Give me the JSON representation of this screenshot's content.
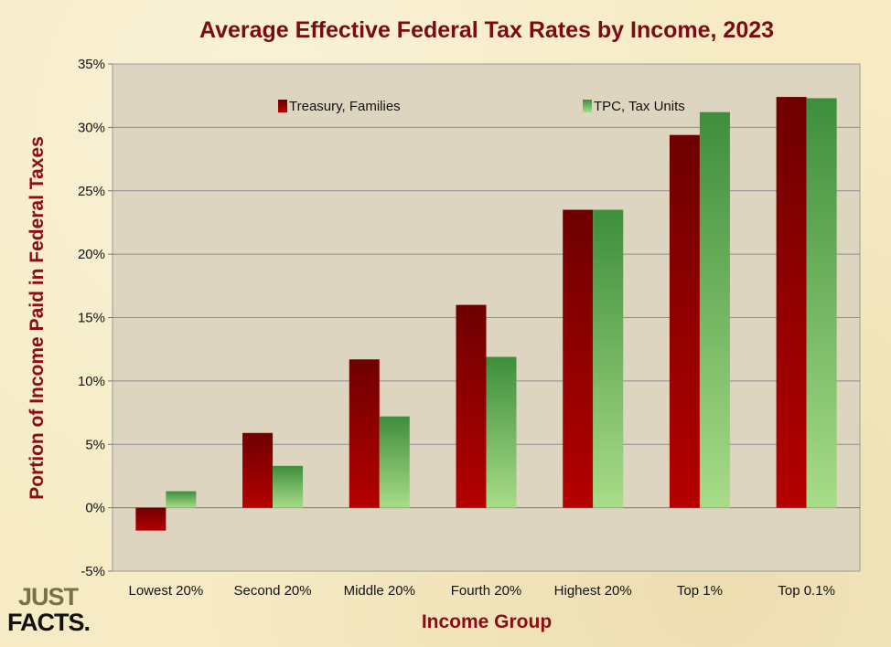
{
  "chart_data": {
    "type": "bar",
    "title": "Average Effective Federal Tax Rates by Income, 2023",
    "xlabel": "Income Group",
    "ylabel": "Portion of Income Paid in Federal Taxes",
    "categories": [
      "Lowest 20%",
      "Second 20%",
      "Middle 20%",
      "Fourth 20%",
      "Highest 20%",
      "Top 1%",
      "Top 0.1%"
    ],
    "series": [
      {
        "name": "Treasury, Families",
        "values": [
          -1.8,
          5.9,
          11.7,
          16.0,
          23.5,
          29.4,
          32.4
        ],
        "color_dark": "#6e0000",
        "color_light": "#b30000"
      },
      {
        "name": "TPC, Tax Units",
        "values": [
          1.3,
          3.3,
          7.2,
          11.9,
          23.5,
          31.2,
          32.3
        ],
        "color_dark": "#3e8e3c",
        "color_light": "#a3db85"
      }
    ],
    "ylim": [
      -5,
      35
    ],
    "yticks": [
      -5,
      0,
      5,
      10,
      15,
      20,
      25,
      30,
      35
    ],
    "ytick_labels": [
      "-5%",
      "0%",
      "5%",
      "10%",
      "15%",
      "20%",
      "25%",
      "30%",
      "35%"
    ],
    "grid": true,
    "legend_position": "top"
  },
  "logo": {
    "line1": "JUST",
    "line2": "FACTS."
  },
  "colors": {
    "plot_bg": "#ddd5bf",
    "grid": "#8a8a8a",
    "title": "#7a0b12"
  }
}
